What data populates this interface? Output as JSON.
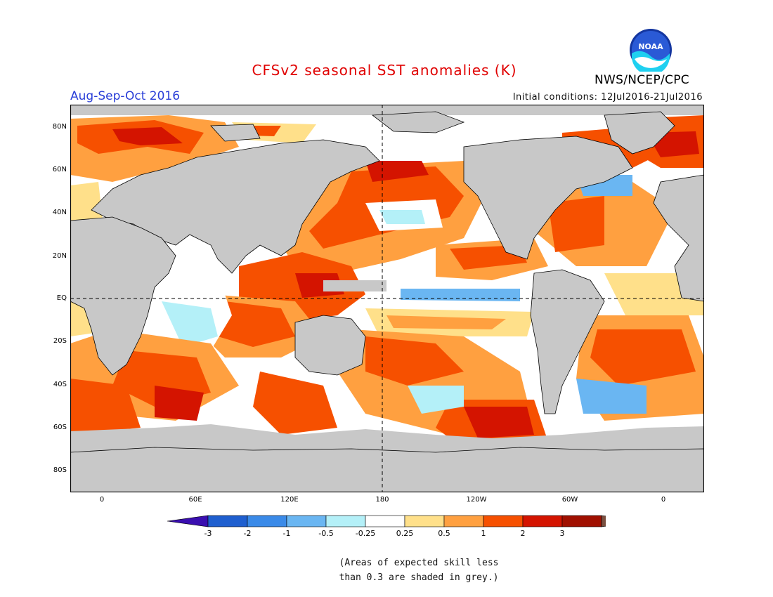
{
  "title": "CFSv2 seasonal SST anomalies (K)",
  "season": "Aug-Sep-Oct 2016",
  "initial_conditions": "Initial conditions: 12Jul2016-21Jul2016",
  "agency": "NWS/NCEP/CPC",
  "logo_text": "NOAA",
  "lat_labels": [
    "80N",
    "60N",
    "40N",
    "20N",
    "EQ",
    "20S",
    "40S",
    "60S",
    "80S"
  ],
  "lon_labels": [
    "0",
    "60E",
    "120E",
    "180",
    "120W",
    "60W",
    "0"
  ],
  "colorbar": {
    "labels": [
      "-3",
      "-2",
      "-1",
      "-0.5",
      "-0.25",
      "0.25",
      "0.5",
      "1",
      "2",
      "3"
    ],
    "colors": [
      "#3a0fb0",
      "#1f5fcf",
      "#3a8ae8",
      "#6ab6f2",
      "#b4f0f8",
      "#ffffff",
      "#ffe08a",
      "#ffa040",
      "#f65000",
      "#d41400",
      "#a01000",
      "#7a5040"
    ]
  },
  "note_line1": "(Areas of expected skill less",
  "note_line2": "than 0.3 are shaded in grey.)",
  "map": {
    "ocean_base": "#ffffff",
    "land_color": "#c8c8c8",
    "skill_grey": "#c8c8c8"
  }
}
